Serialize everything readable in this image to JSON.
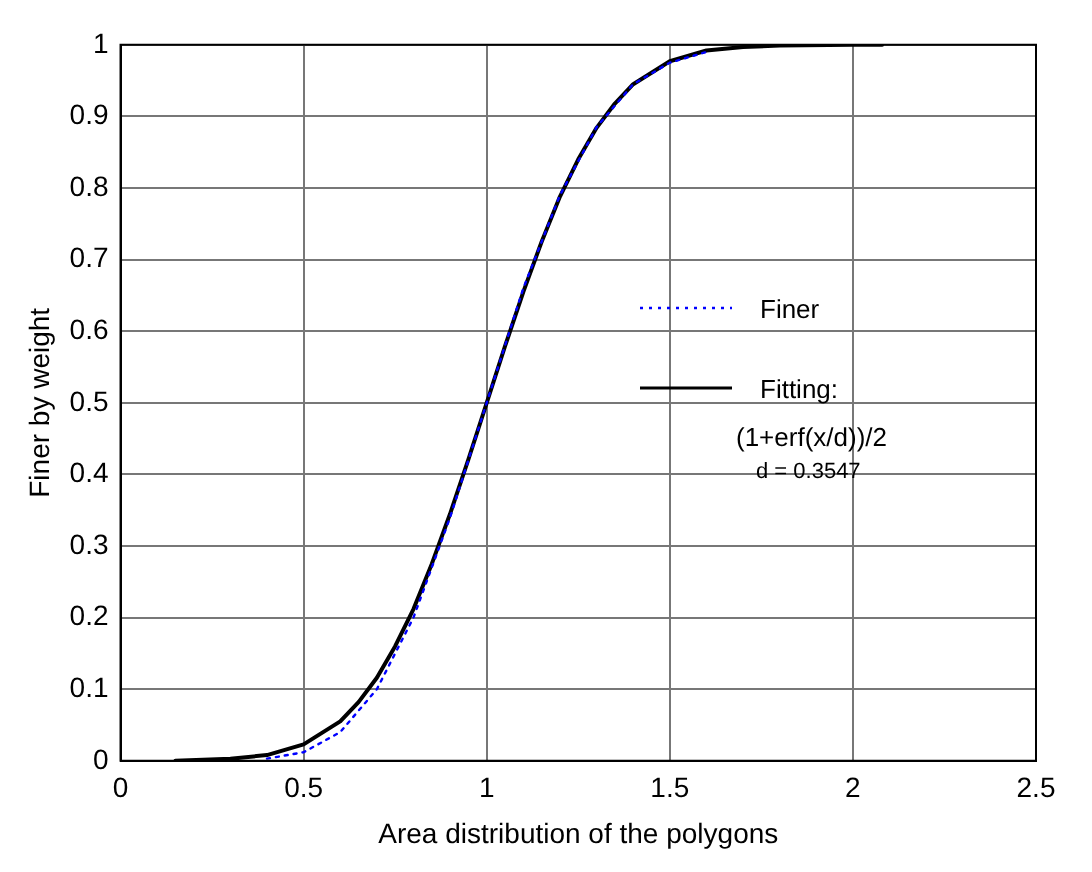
{
  "chart_data": {
    "type": "line",
    "xlabel": "Area distribution of the polygons",
    "ylabel": "Finer by weight",
    "xlim": [
      0,
      2.5
    ],
    "xticks": [
      0,
      0.5,
      1,
      1.5,
      2,
      2.5
    ],
    "ylim": [
      0,
      1
    ],
    "yticks": [
      0,
      0.1,
      0.2,
      0.3,
      0.4,
      0.5,
      0.6,
      0.7,
      0.8,
      0.9,
      1
    ],
    "grid": true,
    "legend": "right",
    "marker": "none",
    "annotations": [
      "(1+erf(x/d))/2",
      "d = 0.3547"
    ],
    "series": [
      {
        "name": "Finer",
        "color": "#0000ff",
        "line_style": "dotted",
        "x": [
          0.4,
          0.5,
          0.6,
          0.7,
          0.8,
          0.9,
          1.0,
          1.1,
          1.2,
          1.3,
          1.4,
          1.5,
          1.6
        ],
        "values": [
          0.003,
          0.012,
          0.04,
          0.1,
          0.2,
          0.34,
          0.5,
          0.66,
          0.79,
          0.885,
          0.945,
          0.975,
          0.99
        ]
      },
      {
        "name": "Fitting:",
        "color": "#000000",
        "line_style": "solid",
        "x": [
          0.15,
          0.3,
          0.4,
          0.5,
          0.6,
          0.65,
          0.7,
          0.75,
          0.8,
          0.85,
          0.9,
          0.95,
          1.0,
          1.05,
          1.1,
          1.15,
          1.2,
          1.25,
          1.3,
          1.35,
          1.4,
          1.5,
          1.6,
          1.7,
          1.8,
          2.0,
          2.08
        ],
        "values": [
          0.0,
          0.003,
          0.008,
          0.023,
          0.055,
          0.082,
          0.116,
          0.16,
          0.212,
          0.275,
          0.345,
          0.421,
          0.5,
          0.579,
          0.655,
          0.725,
          0.788,
          0.84,
          0.884,
          0.918,
          0.945,
          0.977,
          0.992,
          0.997,
          0.999,
          1.0,
          1.0
        ]
      }
    ]
  }
}
